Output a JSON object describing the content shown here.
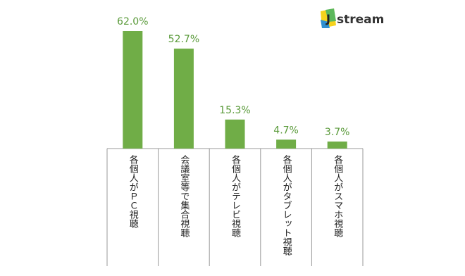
{
  "chart_data": {
    "type": "bar",
    "categories": [
      "各個人がＰＣ視聴",
      "会議室等で集合視聴",
      "各個人がテレビ視聴",
      "各個人がタブレット視聴",
      "各個人がスマホ視聴"
    ],
    "values": [
      62.0,
      52.7,
      15.3,
      4.7,
      3.7
    ],
    "value_labels": [
      "62.0%",
      "52.7%",
      "15.3%",
      "4.7%",
      "3.7%"
    ],
    "color": "#70ad47"
  },
  "logo": {
    "mark": "J",
    "text": "stream"
  }
}
